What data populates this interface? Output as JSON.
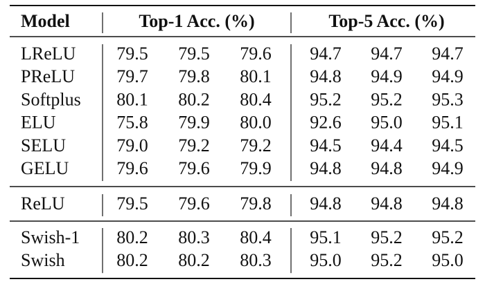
{
  "table": {
    "header": [
      "Model",
      "Top-1 Acc. (%)",
      "Top-5 Acc. (%)"
    ],
    "groups": [
      [
        [
          "LReLU",
          "79.5",
          "79.5",
          "79.6",
          "94.7",
          "94.7",
          "94.7"
        ],
        [
          "PReLU",
          "79.7",
          "79.8",
          "80.1",
          "94.8",
          "94.9",
          "94.9"
        ],
        [
          "Softplus",
          "80.1",
          "80.2",
          "80.4",
          "95.2",
          "95.2",
          "95.3"
        ],
        [
          "ELU",
          "75.8",
          "79.9",
          "80.0",
          "92.6",
          "95.0",
          "95.1"
        ],
        [
          "SELU",
          "79.0",
          "79.2",
          "79.2",
          "94.5",
          "94.4",
          "94.5"
        ],
        [
          "GELU",
          "79.6",
          "79.6",
          "79.9",
          "94.8",
          "94.8",
          "94.9"
        ]
      ],
      [
        [
          "ReLU",
          "79.5",
          "79.6",
          "79.8",
          "94.8",
          "94.8",
          "94.8"
        ]
      ],
      [
        [
          "Swish-1",
          "80.2",
          "80.3",
          "80.4",
          "95.1",
          "95.2",
          "95.2"
        ],
        [
          "Swish",
          "80.2",
          "80.2",
          "80.3",
          "95.0",
          "95.2",
          "95.0"
        ]
      ]
    ]
  }
}
